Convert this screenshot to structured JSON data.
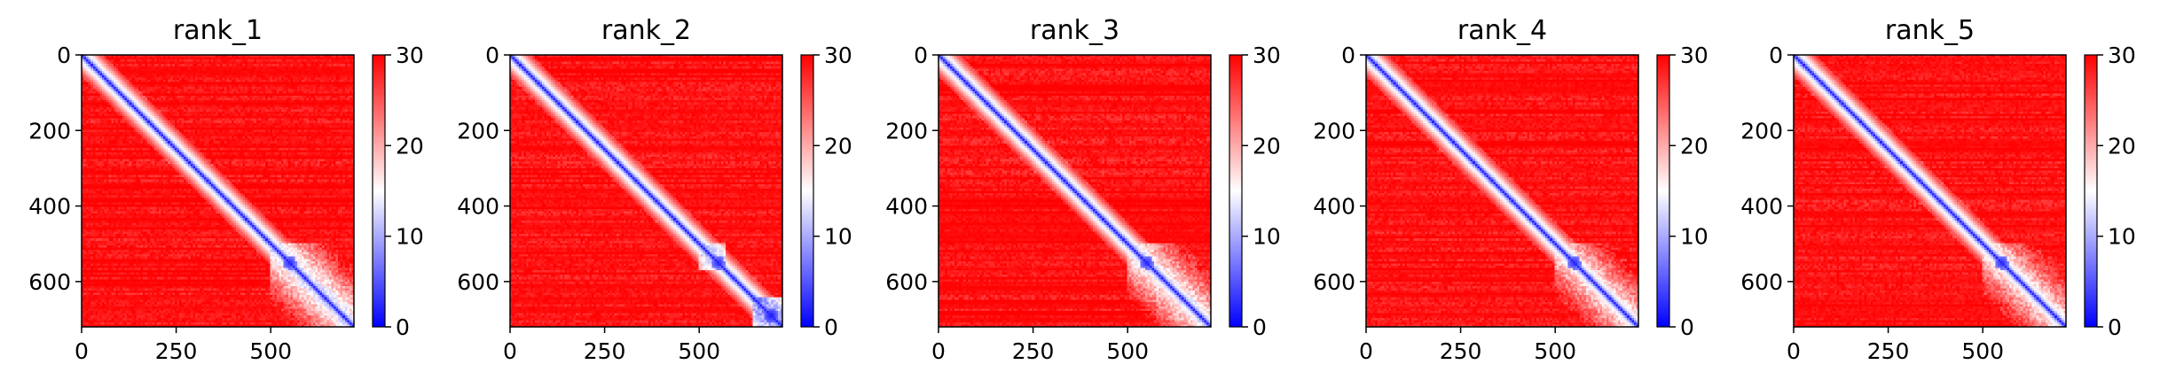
{
  "chart_data": {
    "type": "heatmap",
    "colormap": [
      "#0000ff",
      "#ffffff",
      "#ff0000"
    ],
    "vmin": 0,
    "vmax": 30,
    "matrix_size": 720,
    "xlim": [
      0,
      720
    ],
    "ylim": [
      720,
      0
    ],
    "x_ticks": [
      "0",
      "250",
      "500"
    ],
    "x_tick_values": [
      0,
      250,
      500
    ],
    "y_ticks": [
      "0",
      "200",
      "400",
      "600"
    ],
    "y_tick_values": [
      0,
      200,
      400,
      600
    ],
    "colorbar_ticks": [
      "0",
      "10",
      "20",
      "30"
    ],
    "colorbar_tick_values": [
      0,
      10,
      20,
      30
    ],
    "panels": [
      {
        "title": "rank_1",
        "features": {
          "diagonal": 2,
          "block": [
            [
              500,
              720,
              9
            ]
          ],
          "hotspots": [
            [
              550,
              550,
              2
            ]
          ]
        }
      },
      {
        "title": "rank_2",
        "features": {
          "diagonal": 2,
          "block": [
            [
              500,
              570,
              8
            ],
            [
              640,
              720,
              4
            ]
          ],
          "hotspots": [
            [
              550,
              550,
              2
            ],
            [
              690,
              690,
              1
            ]
          ]
        }
      },
      {
        "title": "rank_3",
        "features": {
          "diagonal": 2,
          "block": [
            [
              500,
              720,
              10
            ]
          ],
          "hotspots": [
            [
              550,
              550,
              2
            ]
          ]
        }
      },
      {
        "title": "rank_4",
        "features": {
          "diagonal": 2,
          "block": [
            [
              500,
              720,
              11
            ]
          ],
          "hotspots": [
            [
              550,
              550,
              2
            ]
          ]
        }
      },
      {
        "title": "rank_5",
        "features": {
          "diagonal": 2,
          "block": [
            [
              500,
              720,
              11
            ]
          ],
          "hotspots": [
            [
              550,
              550,
              2
            ]
          ]
        }
      }
    ]
  }
}
